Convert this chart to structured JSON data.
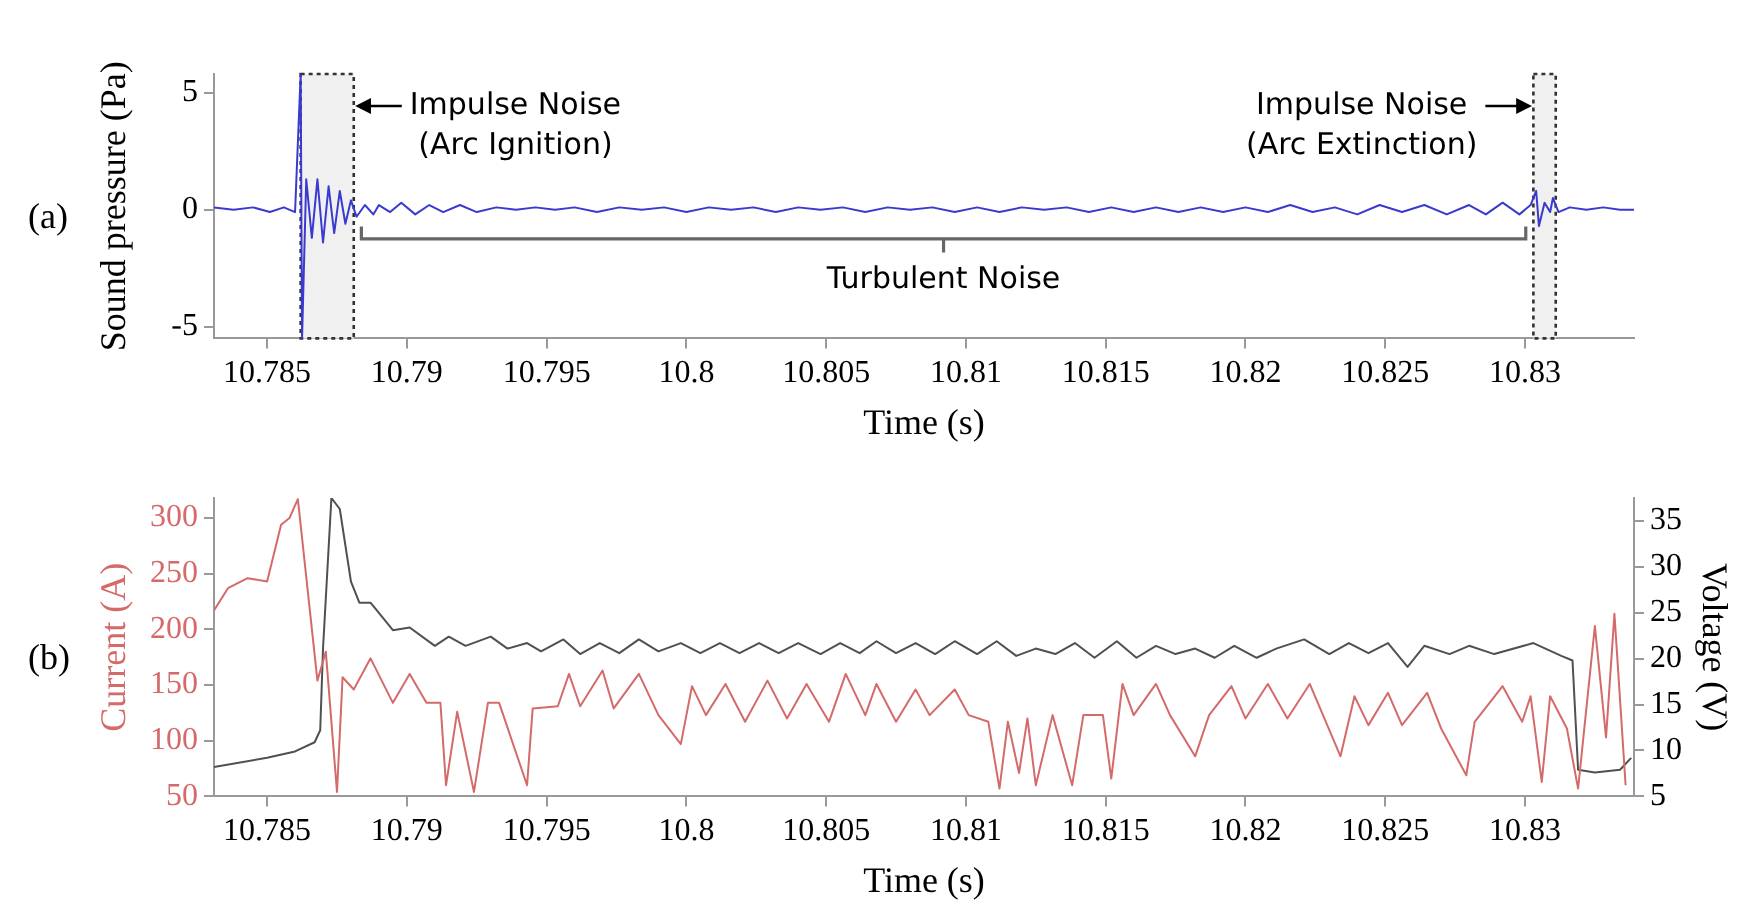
{
  "chart_data": [
    {
      "type": "line",
      "xlabel": "Time (s)",
      "ylabel": "Sound pressure (Pa)",
      "xlim": [
        10.7831,
        10.8339
      ],
      "xticks": [
        10.785,
        10.79,
        10.795,
        10.8,
        10.805,
        10.81,
        10.815,
        10.82,
        10.825,
        10.83
      ],
      "ylim": [
        -5.5,
        5.8
      ],
      "yticks": [
        -5,
        0,
        5
      ],
      "grid": false,
      "legend": false,
      "marker": "none",
      "bands": [
        {
          "axis": "x",
          "from": 10.7862,
          "to": 10.7881,
          "color": "#f0f0f0"
        },
        {
          "axis": "x",
          "from": 10.8303,
          "to": 10.8311,
          "color": "#f0f0f0"
        }
      ],
      "annotations": [
        "(a)",
        "Impulse Noise\n(Arc Ignition)",
        "Impulse Noise\n(Arc Extinction)",
        "Turbulent Noise"
      ],
      "series": [
        {
          "color": "#3a3ad0",
          "x": [
            10.7831,
            10.7838,
            10.7845,
            10.7851,
            10.7856,
            10.786,
            10.7862,
            10.78625,
            10.7864,
            10.7866,
            10.7868,
            10.787,
            10.7872,
            10.7874,
            10.7876,
            10.7878,
            10.788,
            10.7882,
            10.7885,
            10.7888,
            10.789,
            10.7894,
            10.7898,
            10.7903,
            10.7908,
            10.7913,
            10.7919,
            10.7925,
            10.7932,
            10.7939,
            10.7946,
            10.7953,
            10.796,
            10.7968,
            10.7976,
            10.7984,
            10.7992,
            10.8,
            10.8008,
            10.8016,
            10.8024,
            10.8032,
            10.804,
            10.8048,
            10.8056,
            10.8064,
            10.8072,
            10.808,
            10.8088,
            10.8096,
            10.8104,
            10.8112,
            10.812,
            10.8128,
            10.8136,
            10.8144,
            10.8152,
            10.816,
            10.8168,
            10.8176,
            10.8184,
            10.8192,
            10.82,
            10.8208,
            10.8216,
            10.8224,
            10.8232,
            10.824,
            10.8248,
            10.8256,
            10.8264,
            10.8272,
            10.828,
            10.8286,
            10.8292,
            10.8298,
            10.8302,
            10.8304,
            10.8305,
            10.8307,
            10.8309,
            10.831,
            10.8312,
            10.8316,
            10.8322,
            10.8328,
            10.8334,
            10.8339
          ],
          "values": [
            0.1,
            0.0,
            0.1,
            -0.1,
            0.1,
            -0.1,
            5.8,
            -5.5,
            1.3,
            -1.2,
            1.3,
            -1.4,
            1.0,
            -1.0,
            0.8,
            -0.6,
            0.4,
            -0.3,
            0.2,
            -0.2,
            0.2,
            -0.1,
            0.3,
            -0.2,
            0.2,
            -0.1,
            0.2,
            -0.1,
            0.1,
            0.0,
            0.1,
            0.0,
            0.1,
            -0.1,
            0.1,
            0.0,
            0.1,
            -0.1,
            0.1,
            0.0,
            0.1,
            -0.1,
            0.1,
            0.0,
            0.1,
            -0.1,
            0.1,
            0.0,
            0.1,
            -0.1,
            0.1,
            -0.1,
            0.1,
            0.0,
            0.1,
            -0.1,
            0.1,
            -0.1,
            0.1,
            -0.1,
            0.1,
            -0.1,
            0.1,
            -0.1,
            0.2,
            -0.1,
            0.1,
            -0.2,
            0.2,
            -0.1,
            0.2,
            -0.2,
            0.2,
            -0.2,
            0.3,
            -0.2,
            0.2,
            0.8,
            -0.7,
            0.3,
            -0.1,
            0.5,
            -0.1,
            0.1,
            0.0,
            0.1,
            0.0,
            0.0
          ]
        }
      ]
    },
    {
      "type": "line",
      "xlabel": "Time (s)",
      "ylabel": "Current (A)",
      "y2label": "Voltage (V)",
      "xlim": [
        10.7831,
        10.8339
      ],
      "xticks": [
        10.785,
        10.79,
        10.795,
        10.8,
        10.805,
        10.81,
        10.815,
        10.82,
        10.825,
        10.83
      ],
      "ylim": [
        50,
        318
      ],
      "yticks": [
        50,
        100,
        150,
        200,
        250,
        300
      ],
      "y2lim": [
        5,
        37.5
      ],
      "y2ticks": [
        5,
        10,
        15,
        20,
        25,
        30,
        35
      ],
      "grid": false,
      "legend": false,
      "marker": "none",
      "annotations": [
        "(b)"
      ],
      "series": [
        {
          "color": "#d46a6a",
          "x": [
            10.7831,
            10.7836,
            10.7843,
            10.785,
            10.7855,
            10.7858,
            10.7861,
            10.7868,
            10.7871,
            10.7875,
            10.7877,
            10.7881,
            10.7887,
            10.7895,
            10.7901,
            10.7907,
            10.7912,
            10.7914,
            10.7918,
            10.7924,
            10.7929,
            10.7933,
            10.7943,
            10.7945,
            10.7954,
            10.7958,
            10.7962,
            10.797,
            10.7974,
            10.7983,
            10.799,
            10.7998,
            10.8002,
            10.8007,
            10.8014,
            10.8021,
            10.8029,
            10.8036,
            10.8043,
            10.8051,
            10.8057,
            10.8064,
            10.8068,
            10.8075,
            10.8082,
            10.8087,
            10.8096,
            10.8101,
            10.8108,
            10.8112,
            10.8115,
            10.8119,
            10.8122,
            10.8125,
            10.8131,
            10.8138,
            10.8142,
            10.8149,
            10.8152,
            10.8156,
            10.816,
            10.8168,
            10.8173,
            10.8182,
            10.8187,
            10.8195,
            10.82,
            10.8208,
            10.8215,
            10.8223,
            10.8234,
            10.8239,
            10.8244,
            10.8251,
            10.8256,
            10.8265,
            10.827,
            10.8279,
            10.8282,
            10.8292,
            10.8299,
            10.8302,
            10.8306,
            10.8309,
            10.8315,
            10.8319,
            10.8325,
            10.8329,
            10.8332,
            10.8336
          ],
          "values": [
            217,
            237,
            246,
            243,
            294,
            300,
            317,
            154,
            180,
            54,
            157,
            146,
            174,
            134,
            160,
            134,
            134,
            60,
            126,
            54,
            134,
            134,
            60,
            129,
            131,
            160,
            131,
            163,
            129,
            160,
            123,
            97,
            149,
            123,
            151,
            117,
            154,
            120,
            151,
            117,
            160,
            123,
            151,
            117,
            146,
            123,
            146,
            123,
            117,
            57,
            117,
            71,
            120,
            60,
            123,
            60,
            123,
            123,
            66,
            151,
            123,
            151,
            123,
            86,
            123,
            149,
            120,
            151,
            120,
            151,
            86,
            140,
            114,
            143,
            114,
            143,
            111,
            69,
            117,
            149,
            117,
            140,
            63,
            140,
            111,
            57,
            203,
            103,
            214,
            60
          ]
        },
        {
          "color": "#505050",
          "axis": "y2",
          "x": [
            10.7831,
            10.785,
            10.786,
            10.7867,
            10.7869,
            10.787,
            10.7873,
            10.7876,
            10.788,
            10.7883,
            10.7887,
            10.7895,
            10.7901,
            10.791,
            10.7915,
            10.7921,
            10.793,
            10.7936,
            10.7943,
            10.7948,
            10.7956,
            10.7962,
            10.7969,
            10.7976,
            10.7983,
            10.799,
            10.7998,
            10.8005,
            10.8012,
            10.8019,
            10.8026,
            10.8033,
            10.804,
            10.8048,
            10.8055,
            10.8062,
            10.8068,
            10.8075,
            10.8082,
            10.8089,
            10.8096,
            10.8104,
            10.8111,
            10.8118,
            10.8125,
            10.8132,
            10.8139,
            10.8146,
            10.8154,
            10.8161,
            10.8168,
            10.8175,
            10.8182,
            10.8189,
            10.8196,
            10.8204,
            10.8211,
            10.8221,
            10.823,
            10.8237,
            10.8244,
            10.8251,
            10.8258,
            10.8264,
            10.8273,
            10.828,
            10.8289,
            10.8303,
            10.8313,
            10.8317,
            10.8319,
            10.8325,
            10.8334,
            10.8338
          ],
          "values": [
            8.2,
            9.2,
            9.9,
            10.9,
            12.2,
            21.1,
            37.5,
            36.3,
            28.4,
            26.1,
            26.1,
            23.1,
            23.4,
            21.4,
            22.4,
            21.4,
            22.4,
            21.1,
            21.7,
            20.8,
            22.1,
            20.5,
            21.7,
            20.6,
            22.1,
            20.8,
            21.7,
            20.6,
            21.7,
            20.6,
            21.7,
            20.6,
            21.7,
            20.5,
            21.7,
            20.6,
            21.9,
            20.6,
            21.7,
            20.5,
            21.9,
            20.5,
            21.9,
            20.3,
            21.1,
            20.5,
            21.7,
            20.1,
            21.9,
            20.1,
            21.4,
            20.5,
            21.1,
            20.1,
            21.4,
            20.1,
            21.1,
            22.1,
            20.5,
            21.7,
            20.6,
            21.7,
            19.1,
            21.4,
            20.5,
            21.4,
            20.5,
            21.7,
            20.3,
            19.8,
            7.9,
            7.6,
            7.9,
            9.2
          ]
        }
      ]
    }
  ]
}
